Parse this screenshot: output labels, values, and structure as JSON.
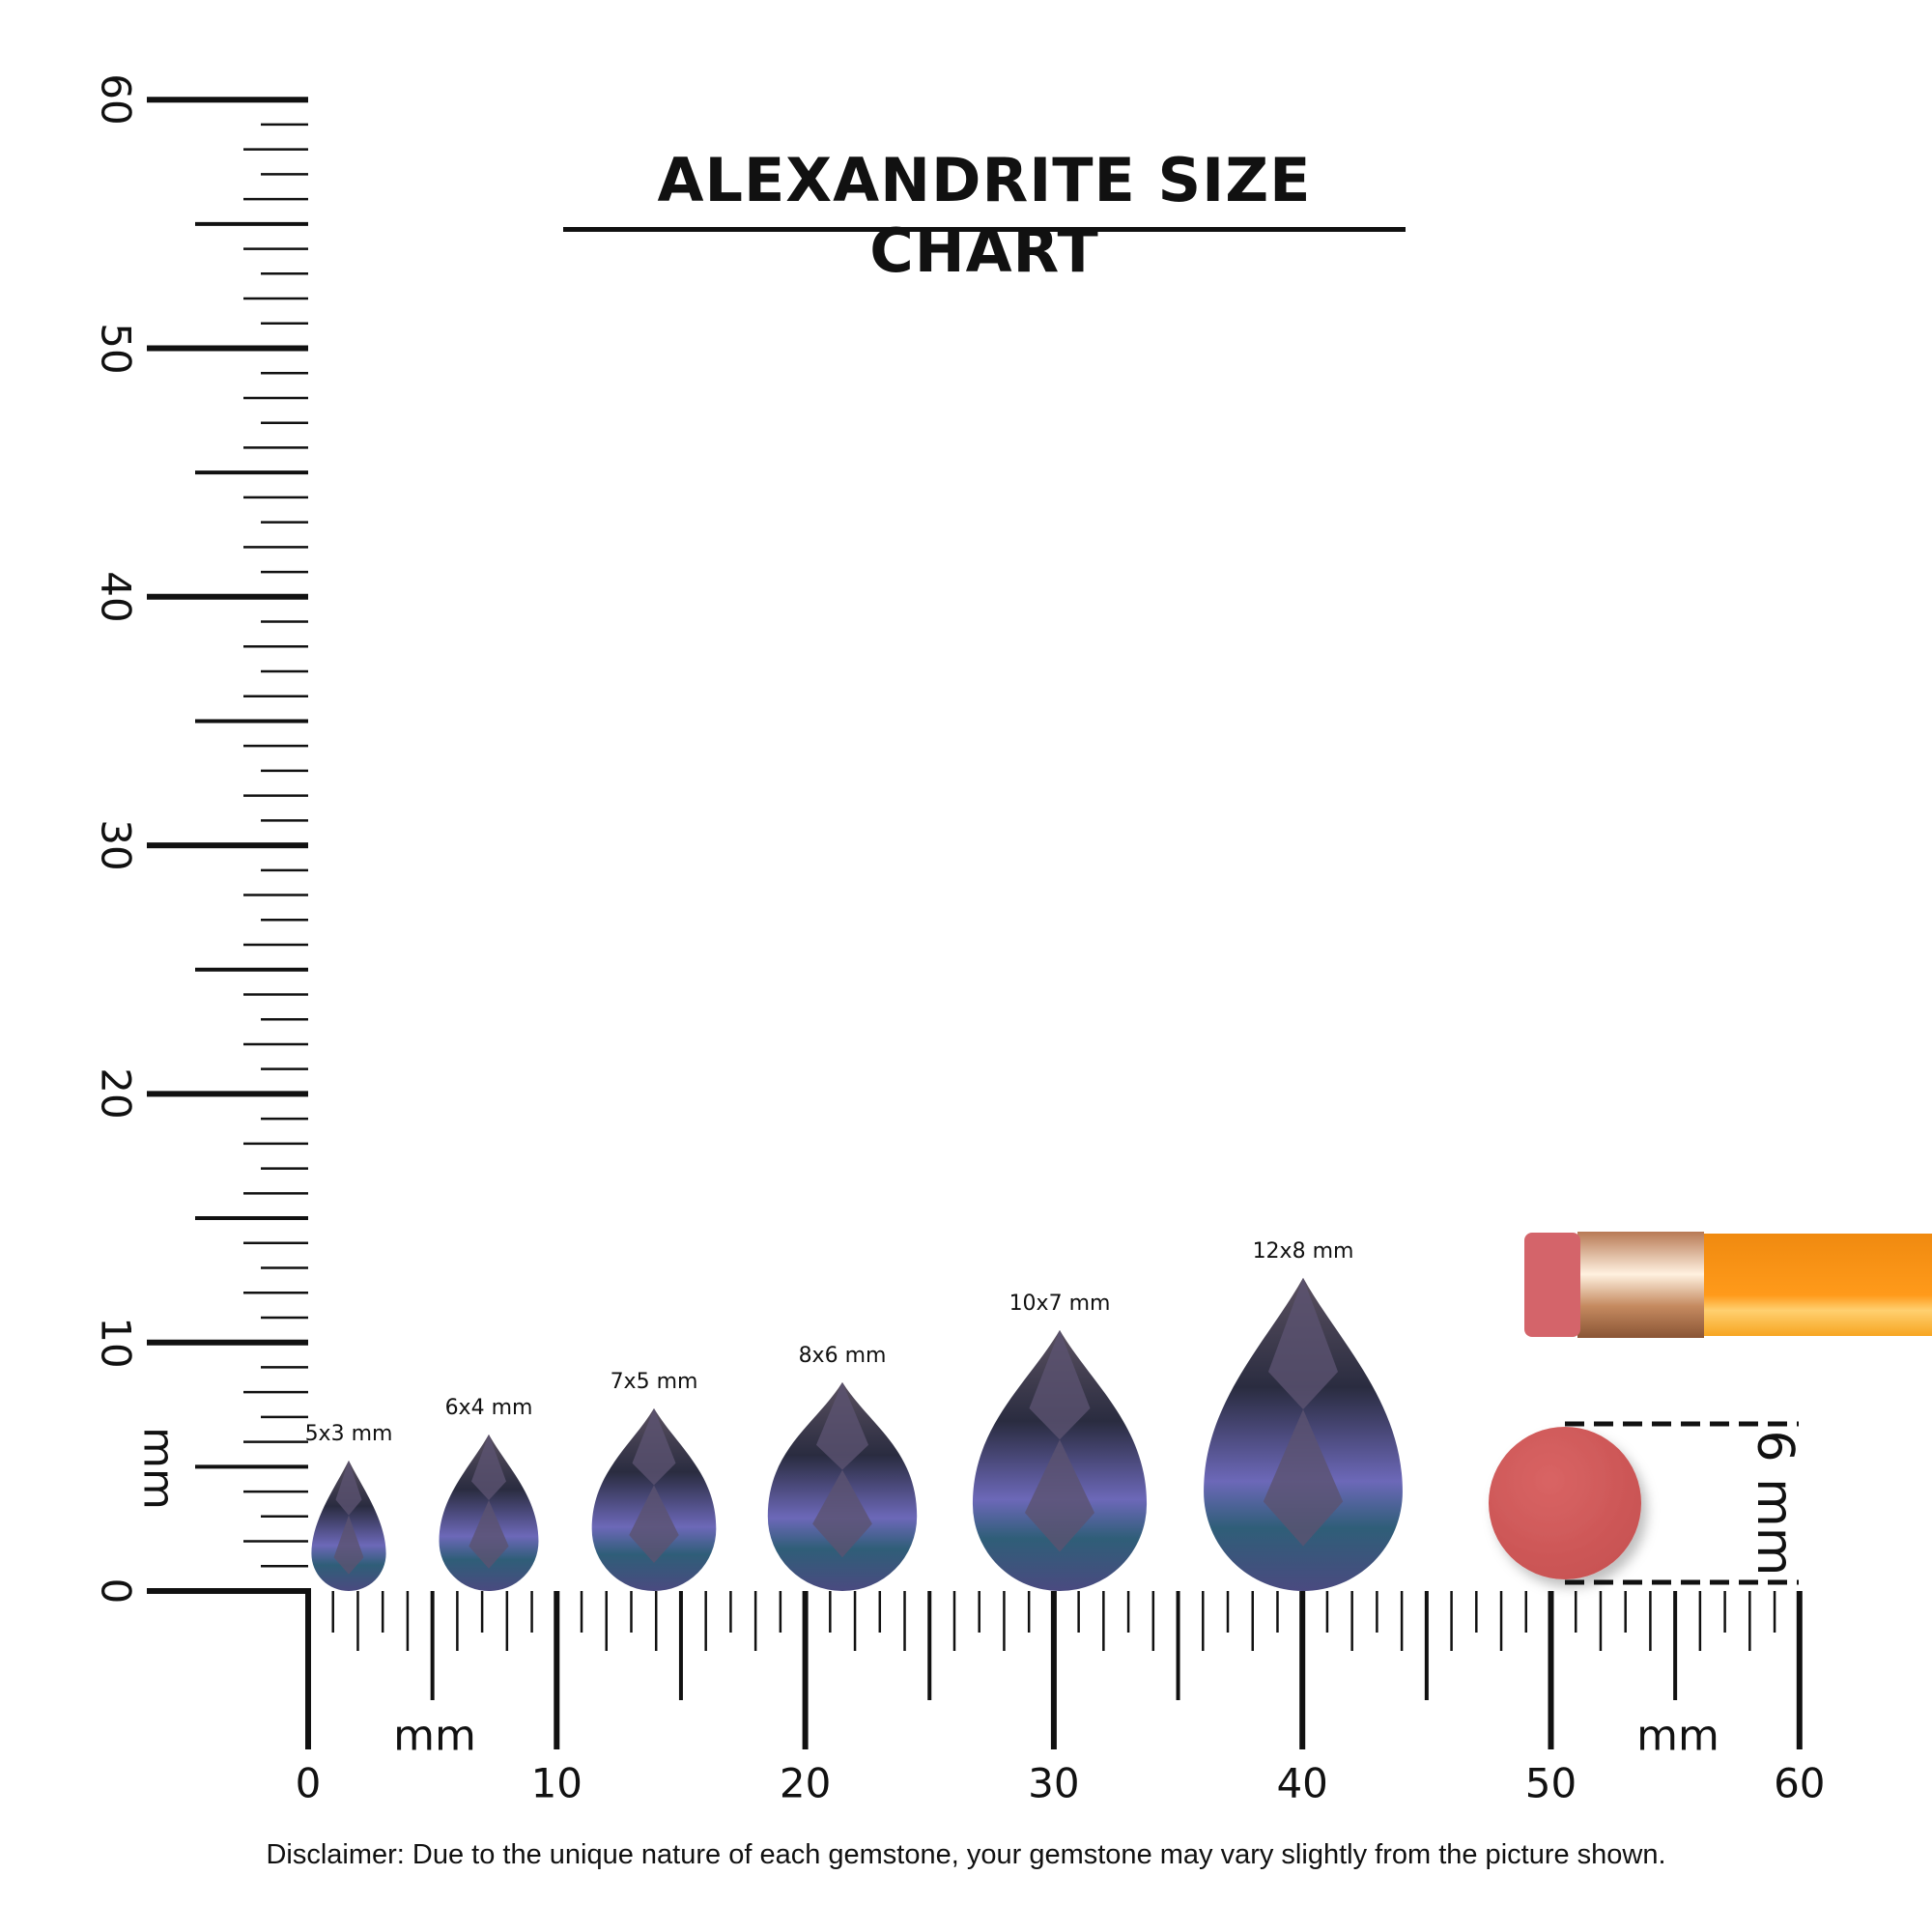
{
  "title": "ALEXANDRITE SIZE CHART",
  "disclaimer": "Disclaimer: Due to the unique nature of each gemstone, your gemstone may vary slightly from the picture shown.",
  "ruler": {
    "unit_label": "mm",
    "range_mm": [
      0,
      60
    ],
    "labels": [
      "0",
      "10",
      "20",
      "30",
      "40",
      "50",
      "60"
    ]
  },
  "gems": [
    {
      "label": "5x3 mm",
      "length_mm": 5,
      "width_mm": 3
    },
    {
      "label": "6x4 mm",
      "length_mm": 6,
      "width_mm": 4
    },
    {
      "label": "7x5 mm",
      "length_mm": 7,
      "width_mm": 5
    },
    {
      "label": "8x6 mm",
      "length_mm": 8,
      "width_mm": 6
    },
    {
      "label": "10x7 mm",
      "length_mm": 10,
      "width_mm": 7
    },
    {
      "label": "12x8 mm",
      "length_mm": 12,
      "width_mm": 8
    }
  ],
  "reference": {
    "eraser_label": "6 mm",
    "eraser_diameter_mm": 6
  },
  "colors": {
    "ink": "#111111",
    "gem_dark": "#2a2c40",
    "gem_violet": "#7a74c8",
    "gem_teal": "#2f5e78",
    "eraser": "#d05a5a",
    "pencil": "#f7941d",
    "ferrule": "#d9a27a"
  }
}
